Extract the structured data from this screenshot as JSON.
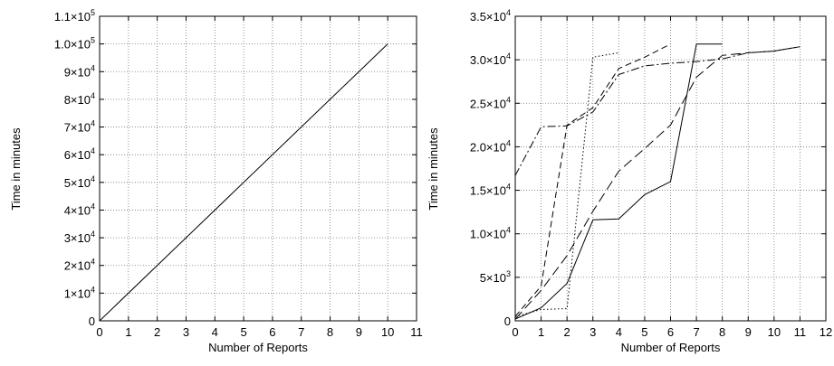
{
  "chart_data": [
    {
      "type": "line",
      "xlabel": "Number of Reports",
      "ylabel": "Time in minutes",
      "xlim": [
        0,
        11
      ],
      "ylim": [
        0,
        110000
      ],
      "grid": true,
      "x_ticks": [
        "0",
        "1",
        "2",
        "3",
        "4",
        "5",
        "6",
        "7",
        "8",
        "9",
        "10",
        "11"
      ],
      "y_ticks": [
        {
          "value": 0,
          "mant": "0",
          "exp": ""
        },
        {
          "value": 10000,
          "mant": "1×10",
          "exp": "4"
        },
        {
          "value": 20000,
          "mant": "2×10",
          "exp": "4"
        },
        {
          "value": 30000,
          "mant": "3×10",
          "exp": "4"
        },
        {
          "value": 40000,
          "mant": "4×10",
          "exp": "4"
        },
        {
          "value": 50000,
          "mant": "5×10",
          "exp": "4"
        },
        {
          "value": 60000,
          "mant": "6×10",
          "exp": "4"
        },
        {
          "value": 70000,
          "mant": "7×10",
          "exp": "4"
        },
        {
          "value": 80000,
          "mant": "8×10",
          "exp": "4"
        },
        {
          "value": 90000,
          "mant": "9×10",
          "exp": "4"
        },
        {
          "value": 100000,
          "mant": "1.0×10",
          "exp": "5"
        },
        {
          "value": 110000,
          "mant": "1.1×10",
          "exp": "5"
        }
      ],
      "series": [
        {
          "style": "solid",
          "x": [
            0,
            10
          ],
          "y": [
            0,
            100000
          ]
        }
      ]
    },
    {
      "type": "line",
      "xlabel": "Number of Reports",
      "ylabel": "Time in minutes",
      "xlim": [
        0,
        12
      ],
      "ylim": [
        0,
        35000
      ],
      "grid": true,
      "x_ticks": [
        "0",
        "1",
        "2",
        "3",
        "4",
        "5",
        "6",
        "7",
        "8",
        "9",
        "10",
        "11",
        "12"
      ],
      "y_ticks": [
        {
          "value": 0,
          "mant": "0",
          "exp": ""
        },
        {
          "value": 5000,
          "mant": "5×10",
          "exp": "3"
        },
        {
          "value": 10000,
          "mant": "1.0×10",
          "exp": "4"
        },
        {
          "value": 15000,
          "mant": "1.5×10",
          "exp": "4"
        },
        {
          "value": 20000,
          "mant": "2.0×10",
          "exp": "4"
        },
        {
          "value": 25000,
          "mant": "2.5×10",
          "exp": "4"
        },
        {
          "value": 30000,
          "mant": "3.0×10",
          "exp": "4"
        },
        {
          "value": 35000,
          "mant": "3.5×10",
          "exp": "4"
        }
      ],
      "series": [
        {
          "style": "solid",
          "x": [
            0,
            1,
            2,
            3,
            4,
            5,
            6,
            7,
            8
          ],
          "y": [
            200,
            1500,
            4300,
            11600,
            11700,
            14500,
            16000,
            31800,
            31800
          ]
        },
        {
          "style": "dotted",
          "x": [
            0,
            1,
            2,
            3,
            4
          ],
          "y": [
            500,
            1300,
            1400,
            30300,
            30800
          ]
        },
        {
          "style": "dashed",
          "x": [
            0,
            1,
            2,
            3,
            4,
            5,
            6
          ],
          "y": [
            500,
            4000,
            22500,
            24500,
            29000,
            30300,
            31800
          ]
        },
        {
          "style": "dashdot",
          "x": [
            0,
            1,
            2,
            3,
            4,
            5,
            6,
            7,
            8,
            9,
            10,
            11
          ],
          "y": [
            16700,
            22300,
            22400,
            24000,
            28300,
            29300,
            29600,
            29800,
            30100,
            30800,
            31000,
            31500
          ]
        },
        {
          "style": "longdash",
          "x": [
            0,
            1,
            2,
            3,
            4,
            5,
            6,
            7,
            8,
            9,
            10,
            11
          ],
          "y": [
            200,
            3500,
            7500,
            12600,
            17200,
            19800,
            22500,
            28000,
            30500,
            30800,
            31000,
            31500
          ]
        }
      ]
    }
  ]
}
